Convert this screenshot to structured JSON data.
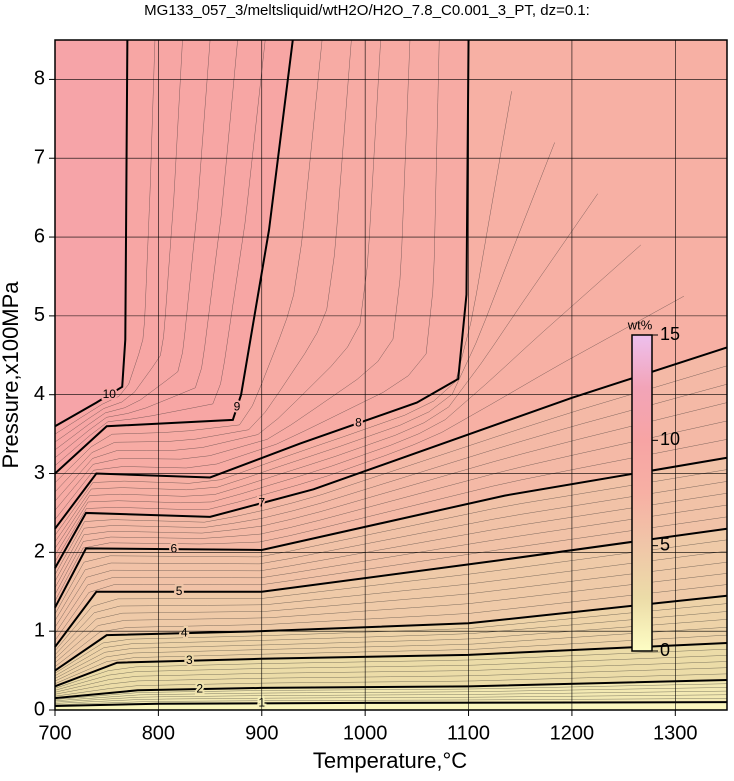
{
  "chart_data": {
    "type": "contour",
    "title": "MG133_057_3/meltsliquid/wtH2O/H2O_7.8_C0.001_3_PT, dz=0.1:",
    "x_label": "Temperature,°C",
    "y_label": "Pressure,x100MPa",
    "xlim": [
      700,
      1350
    ],
    "ylim": [
      0,
      8.5
    ],
    "xticks": [
      700,
      800,
      900,
      1000,
      1100,
      1200,
      1300
    ],
    "yticks": [
      0,
      1,
      2,
      3,
      4,
      5,
      6,
      7,
      8
    ],
    "grid": true,
    "contours": [
      {
        "level": 1,
        "x": [
          700,
          800,
          1000,
          1350
        ],
        "y": [
          0.05,
          0.08,
          0.09,
          0.1
        ]
      },
      {
        "level": 2,
        "x": [
          700,
          780,
          900,
          1100,
          1350
        ],
        "y": [
          0.15,
          0.25,
          0.28,
          0.3,
          0.38
        ]
      },
      {
        "level": 3,
        "x": [
          700,
          760,
          900,
          1100,
          1350
        ],
        "y": [
          0.3,
          0.6,
          0.65,
          0.7,
          0.85
        ]
      },
      {
        "level": 4,
        "x": [
          700,
          750,
          900,
          1100,
          1350
        ],
        "y": [
          0.5,
          0.95,
          1.0,
          1.1,
          1.45
        ]
      },
      {
        "level": 5,
        "x": [
          700,
          740,
          900,
          1130,
          1350
        ],
        "y": [
          0.8,
          1.5,
          1.5,
          1.9,
          2.3
        ]
      },
      {
        "level": 6,
        "x": [
          700,
          730,
          900,
          1135,
          1350
        ],
        "y": [
          1.3,
          2.05,
          2.03,
          2.72,
          3.2
        ]
      },
      {
        "level": 7,
        "x": [
          700,
          730,
          850,
          950,
          1200,
          1350
        ],
        "y": [
          1.8,
          2.5,
          2.45,
          2.8,
          3.96,
          4.6
        ]
      },
      {
        "level": 8,
        "x": [
          700,
          740,
          850,
          937,
          1050,
          1090,
          1098,
          1100
        ],
        "y": [
          2.3,
          3.0,
          2.95,
          3.38,
          3.9,
          4.2,
          5.27,
          8.5
        ]
      },
      {
        "level": 9,
        "x": [
          700,
          750,
          872,
          880,
          907,
          930
        ],
        "y": [
          3.0,
          3.6,
          3.68,
          4.0,
          6.09,
          8.5
        ]
      },
      {
        "level": 10,
        "x": [
          700,
          740,
          765,
          768,
          770
        ],
        "y": [
          3.6,
          3.9,
          4.1,
          4.7,
          8.5
        ]
      }
    ],
    "colorbar": {
      "label": "wt%",
      "lim": [
        0,
        15
      ],
      "ticks": [
        0,
        5,
        10,
        15
      ],
      "colors": [
        "#fdfdc4",
        "#ecdca8",
        "#f0c6a8",
        "#f7b0a4",
        "#f7a4a4",
        "#f2a4b8",
        "#eec0ee"
      ]
    }
  }
}
